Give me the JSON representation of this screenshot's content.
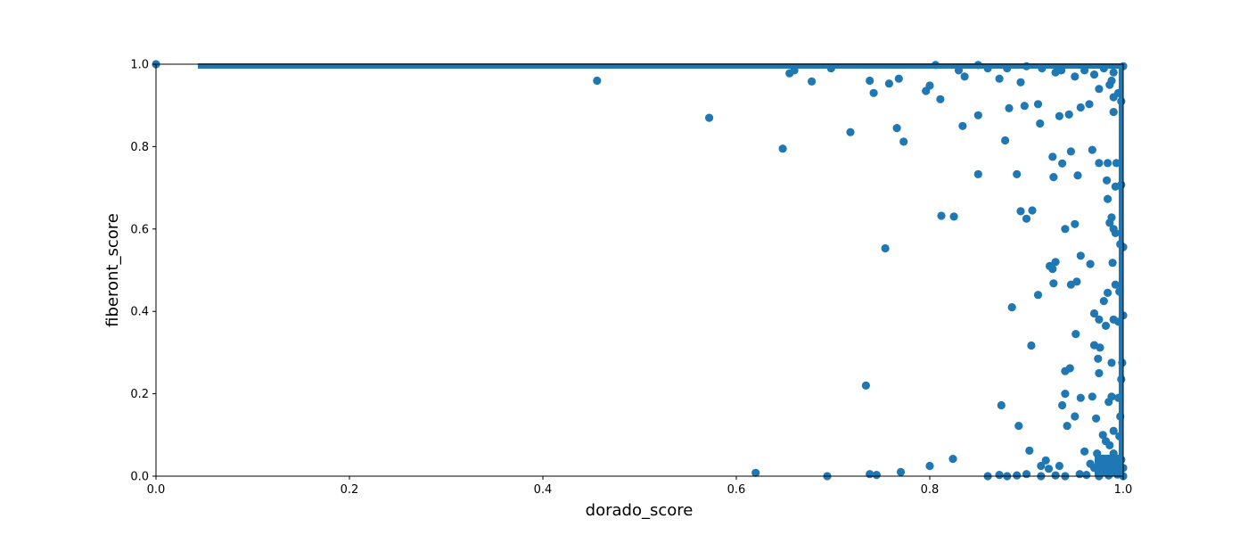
{
  "chart_data": {
    "type": "scatter",
    "title": "",
    "xlabel": "dorado_score",
    "ylabel": "fiberont_score",
    "xlim": [
      0,
      1
    ],
    "ylim": [
      0,
      1
    ],
    "xticks": [
      "0.0",
      "0.2",
      "0.4",
      "0.6",
      "0.8",
      "1.0"
    ],
    "yticks": [
      "0.0",
      "0.2",
      "0.4",
      "0.6",
      "0.8",
      "1.0"
    ],
    "grid": false,
    "legend": "none",
    "marker_color": "#1f77b4",
    "series": [
      {
        "points": [
          [
            0.0,
            1.0
          ],
          [
            0.456,
            0.96
          ],
          [
            0.572,
            0.87
          ],
          [
            0.648,
            0.795
          ],
          [
            0.718,
            0.835
          ],
          [
            0.754,
            0.553
          ],
          [
            0.734,
            0.22
          ],
          [
            0.62,
            0.008
          ],
          [
            0.694,
            0.0
          ],
          [
            0.738,
            0.005
          ],
          [
            0.745,
            0.003
          ],
          [
            0.77,
            0.01
          ],
          [
            0.8,
            0.025
          ],
          [
            0.824,
            0.042
          ],
          [
            0.655,
            0.978
          ],
          [
            0.66,
            0.985
          ],
          [
            0.678,
            0.958
          ],
          [
            0.698,
            0.99
          ],
          [
            0.738,
            0.96
          ],
          [
            0.742,
            0.93
          ],
          [
            0.758,
            0.953
          ],
          [
            0.768,
            0.965
          ],
          [
            0.766,
            0.845
          ],
          [
            0.773,
            0.812
          ],
          [
            0.796,
            0.935
          ],
          [
            0.8,
            0.948
          ],
          [
            0.811,
            0.915
          ],
          [
            0.834,
            0.85
          ],
          [
            0.85,
            0.876
          ],
          [
            0.878,
            0.815
          ],
          [
            0.882,
            0.893
          ],
          [
            0.894,
            0.956
          ],
          [
            0.898,
            0.899
          ],
          [
            0.912,
            0.903
          ],
          [
            0.914,
            0.856
          ],
          [
            0.934,
            0.874
          ],
          [
            0.944,
            0.878
          ],
          [
            0.956,
            0.895
          ],
          [
            0.965,
            0.903
          ],
          [
            0.975,
            0.94
          ],
          [
            0.986,
            0.95
          ],
          [
            0.99,
            0.884
          ],
          [
            0.85,
            0.733
          ],
          [
            0.89,
            0.733
          ],
          [
            0.927,
            0.775
          ],
          [
            0.928,
            0.726
          ],
          [
            0.937,
            0.759
          ],
          [
            0.946,
            0.788
          ],
          [
            0.953,
            0.73
          ],
          [
            0.968,
            0.792
          ],
          [
            0.975,
            0.76
          ],
          [
            0.984,
            0.76
          ],
          [
            0.993,
            0.76
          ],
          [
            0.983,
            0.718
          ],
          [
            0.992,
            0.703
          ],
          [
            0.998,
            0.707
          ],
          [
            0.812,
            0.632
          ],
          [
            0.825,
            0.63
          ],
          [
            0.894,
            0.643
          ],
          [
            0.9,
            0.625
          ],
          [
            0.906,
            0.645
          ],
          [
            0.94,
            0.6
          ],
          [
            0.95,
            0.612
          ],
          [
            0.984,
            0.673
          ],
          [
            0.986,
            0.615
          ],
          [
            0.988,
            0.628
          ],
          [
            0.99,
            0.6
          ],
          [
            0.992,
            0.59
          ],
          [
            0.997,
            0.563
          ],
          [
            1.0,
            0.556
          ],
          [
            0.924,
            0.51
          ],
          [
            0.927,
            0.503
          ],
          [
            0.93,
            0.52
          ],
          [
            0.946,
            0.465
          ],
          [
            0.952,
            0.472
          ],
          [
            0.956,
            0.535
          ],
          [
            0.966,
            0.515
          ],
          [
            0.912,
            0.44
          ],
          [
            0.885,
            0.41
          ],
          [
            0.928,
            0.468
          ],
          [
            0.989,
            0.518
          ],
          [
            0.992,
            0.465
          ],
          [
            0.996,
            0.448
          ],
          [
            0.984,
            0.445
          ],
          [
            0.98,
            0.425
          ],
          [
            0.97,
            0.395
          ],
          [
            0.975,
            0.38
          ],
          [
            0.982,
            0.365
          ],
          [
            0.99,
            0.38
          ],
          [
            0.995,
            0.375
          ],
          [
            1.0,
            0.39
          ],
          [
            0.951,
            0.345
          ],
          [
            0.905,
            0.317
          ],
          [
            0.97,
            0.318
          ],
          [
            0.976,
            0.312
          ],
          [
            0.974,
            0.285
          ],
          [
            0.988,
            0.275
          ],
          [
            0.999,
            0.275
          ],
          [
            0.94,
            0.255
          ],
          [
            0.945,
            0.262
          ],
          [
            0.975,
            0.25
          ],
          [
            0.998,
            0.235
          ],
          [
            0.94,
            0.2
          ],
          [
            0.956,
            0.19
          ],
          [
            0.968,
            0.193
          ],
          [
            0.985,
            0.18
          ],
          [
            0.988,
            0.193
          ],
          [
            0.995,
            0.19
          ],
          [
            0.937,
            0.172
          ],
          [
            0.874,
            0.172
          ],
          [
            0.892,
            0.122
          ],
          [
            0.942,
            0.122
          ],
          [
            0.95,
            0.145
          ],
          [
            0.972,
            0.14
          ],
          [
            0.997,
            0.145
          ],
          [
            0.99,
            0.11
          ],
          [
            0.996,
            0.097
          ],
          [
            0.979,
            0.1
          ],
          [
            0.982,
            0.085
          ],
          [
            0.986,
            0.075
          ],
          [
            0.903,
            0.062
          ],
          [
            0.92,
            0.038
          ],
          [
            0.915,
            0.025
          ],
          [
            0.923,
            0.018
          ],
          [
            0.934,
            0.025
          ],
          [
            0.96,
            0.06
          ],
          [
            0.973,
            0.055
          ],
          [
            0.99,
            0.055
          ],
          [
            0.975,
            0.04
          ],
          [
            0.982,
            0.035
          ],
          [
            0.988,
            0.03
          ],
          [
            0.994,
            0.025
          ],
          [
            0.998,
            0.04
          ],
          [
            0.966,
            0.03
          ],
          [
            0.97,
            0.02
          ],
          [
            0.978,
            0.015
          ],
          [
            0.984,
            0.01
          ],
          [
            0.99,
            0.012
          ],
          [
            0.996,
            0.008
          ],
          [
            1.0,
            0.02
          ],
          [
            0.86,
            0.0
          ],
          [
            0.872,
            0.003
          ],
          [
            0.88,
            0.0
          ],
          [
            0.89,
            0.002
          ],
          [
            0.9,
            0.005
          ],
          [
            0.915,
            0.0
          ],
          [
            0.93,
            0.002
          ],
          [
            0.94,
            0.0
          ],
          [
            0.955,
            0.005
          ],
          [
            0.962,
            0.003
          ],
          [
            0.975,
            0.0
          ],
          [
            0.985,
            0.002
          ],
          [
            0.994,
            0.004
          ],
          [
            1.0,
            0.0
          ],
          [
            0.806,
            0.998
          ],
          [
            0.83,
            0.985
          ],
          [
            0.836,
            0.97
          ],
          [
            0.85,
            0.998
          ],
          [
            0.86,
            0.99
          ],
          [
            0.872,
            0.965
          ],
          [
            0.88,
            0.99
          ],
          [
            0.9,
            0.995
          ],
          [
            0.916,
            0.99
          ],
          [
            0.93,
            0.98
          ],
          [
            0.936,
            0.985
          ],
          [
            0.95,
            0.97
          ],
          [
            0.96,
            0.985
          ],
          [
            0.97,
            0.975
          ],
          [
            0.98,
            0.99
          ],
          [
            0.99,
            0.98
          ],
          [
            1.0,
            0.995
          ],
          [
            0.995,
            0.93
          ],
          [
            0.99,
            0.92
          ],
          [
            0.998,
            0.91
          ],
          [
            0.988,
            0.96
          ]
        ]
      }
    ]
  }
}
